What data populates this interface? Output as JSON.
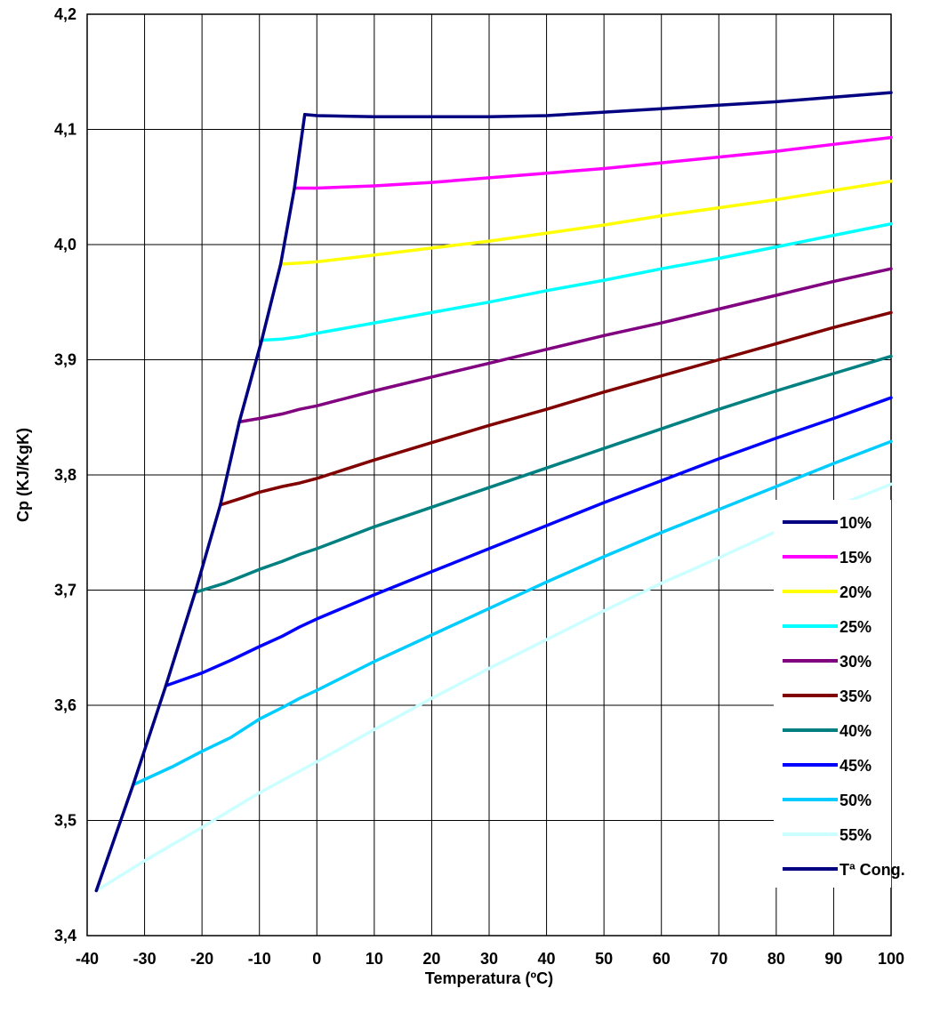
{
  "chart_data": {
    "type": "line",
    "title": "",
    "xlabel": "Temperatura (ºC)",
    "ylabel": "Cp (KJ/KgK)",
    "xlim": [
      -40,
      100
    ],
    "ylim": [
      3.4,
      4.2
    ],
    "x_ticks": [
      "-40",
      "-30",
      "-20",
      "-10",
      "0",
      "10",
      "20",
      "30",
      "40",
      "50",
      "60",
      "70",
      "80",
      "90",
      "100"
    ],
    "y_ticks": [
      "3,4",
      "3,5",
      "3,6",
      "3,7",
      "3,8",
      "3,9",
      "4,0",
      "4,1",
      "4,2"
    ],
    "grid": true,
    "legend_position": "right",
    "series": [
      {
        "name": "10%",
        "color": "#000080",
        "x": [
          -2.1,
          0,
          10,
          20,
          30,
          40,
          50,
          60,
          70,
          80,
          90,
          100
        ],
        "y": [
          4.113,
          4.112,
          4.111,
          4.111,
          4.111,
          4.112,
          4.115,
          4.118,
          4.121,
          4.124,
          4.128,
          4.132
        ]
      },
      {
        "name": "15%",
        "color": "#FF00FF",
        "x": [
          -3.9,
          0,
          10,
          20,
          30,
          40,
          50,
          60,
          70,
          80,
          90,
          100
        ],
        "y": [
          4.049,
          4.049,
          4.051,
          4.054,
          4.058,
          4.062,
          4.066,
          4.071,
          4.076,
          4.081,
          4.087,
          4.093
        ]
      },
      {
        "name": "20%",
        "color": "#FFFF00",
        "x": [
          -6.3,
          -3,
          0,
          10,
          20,
          30,
          40,
          50,
          60,
          70,
          80,
          90,
          100
        ],
        "y": [
          3.983,
          3.984,
          3.985,
          3.991,
          3.997,
          4.003,
          4.01,
          4.017,
          4.025,
          4.032,
          4.039,
          4.047,
          4.055
        ]
      },
      {
        "name": "25%",
        "color": "#00FFFF",
        "x": [
          -9.6,
          -6,
          -3,
          0,
          10,
          20,
          30,
          40,
          50,
          60,
          70,
          80,
          90,
          100
        ],
        "y": [
          3.917,
          3.918,
          3.92,
          3.923,
          3.932,
          3.941,
          3.95,
          3.96,
          3.969,
          3.979,
          3.988,
          3.998,
          4.008,
          4.018
        ]
      },
      {
        "name": "30%",
        "color": "#800080",
        "x": [
          -13.5,
          -10,
          -6,
          -3,
          0,
          10,
          20,
          30,
          40,
          50,
          60,
          70,
          80,
          90,
          100
        ],
        "y": [
          3.846,
          3.849,
          3.853,
          3.857,
          3.86,
          3.873,
          3.885,
          3.897,
          3.909,
          3.921,
          3.932,
          3.944,
          3.956,
          3.968,
          3.979
        ]
      },
      {
        "name": "35%",
        "color": "#800000",
        "x": [
          -16.8,
          -13,
          -10,
          -6,
          -3,
          0,
          10,
          20,
          30,
          40,
          50,
          60,
          70,
          80,
          90,
          100
        ],
        "y": [
          3.774,
          3.78,
          3.785,
          3.79,
          3.793,
          3.797,
          3.813,
          3.828,
          3.843,
          3.857,
          3.872,
          3.886,
          3.9,
          3.914,
          3.928,
          3.941
        ]
      },
      {
        "name": "40%",
        "color": "#008080",
        "x": [
          -21.2,
          -16,
          -13,
          -10,
          -6,
          -3,
          0,
          10,
          20,
          30,
          40,
          50,
          60,
          70,
          80,
          90,
          100
        ],
        "y": [
          3.698,
          3.706,
          3.712,
          3.718,
          3.725,
          3.731,
          3.736,
          3.755,
          3.772,
          3.789,
          3.806,
          3.823,
          3.84,
          3.857,
          3.873,
          3.888,
          3.903
        ]
      },
      {
        "name": "45%",
        "color": "#0000FF",
        "x": [
          -26.3,
          -20,
          -15,
          -10,
          -6,
          -3,
          0,
          10,
          20,
          30,
          40,
          50,
          60,
          70,
          80,
          90,
          100
        ],
        "y": [
          3.617,
          3.628,
          3.639,
          3.651,
          3.66,
          3.668,
          3.675,
          3.696,
          3.716,
          3.736,
          3.756,
          3.776,
          3.795,
          3.814,
          3.832,
          3.849,
          3.867
        ]
      },
      {
        "name": "50%",
        "color": "#00CCFF",
        "x": [
          -32.0,
          -25,
          -20,
          -15,
          -10,
          -6,
          -3,
          0,
          10,
          20,
          30,
          40,
          50,
          60,
          70,
          80,
          90,
          100
        ],
        "y": [
          3.531,
          3.547,
          3.56,
          3.572,
          3.588,
          3.598,
          3.606,
          3.613,
          3.638,
          3.661,
          3.684,
          3.707,
          3.729,
          3.75,
          3.77,
          3.79,
          3.81,
          3.829
        ]
      },
      {
        "name": "55%",
        "color": "#CCFFFF",
        "x": [
          -38.4,
          -30,
          -20,
          -10,
          0,
          10,
          20,
          30,
          40,
          50,
          60,
          70,
          80,
          90,
          100
        ],
        "y": [
          3.439,
          3.465,
          3.494,
          3.524,
          3.551,
          3.579,
          3.606,
          3.632,
          3.657,
          3.682,
          3.706,
          3.728,
          3.751,
          3.772,
          3.792
        ]
      },
      {
        "name": "Tª Cong.",
        "color": "#000080",
        "x": [
          -38.4,
          -32.0,
          -26.3,
          -21.2,
          -16.8,
          -13.5,
          -9.6,
          -6.3,
          -3.9,
          -2.1
        ],
        "y": [
          3.439,
          3.531,
          3.617,
          3.698,
          3.774,
          3.846,
          3.917,
          3.983,
          4.049,
          4.113
        ]
      }
    ]
  }
}
